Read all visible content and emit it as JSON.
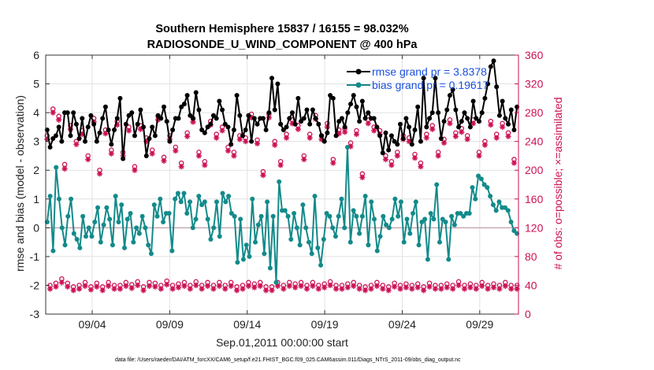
{
  "chart_data": {
    "type": "line",
    "title": "Southern Hemisphere 15837 / 16155 = 98.032%",
    "subtitle": "RADIOSONDE_U_WIND_COMPONENT @ 400 hPa",
    "xlabel": "Sep.01,2011 00:00:00 start",
    "ylabel": "rmse and bias (model - observation)",
    "ylabel_right": "# of obs: o=possible; ×=assimilated",
    "xlim": [
      0,
      30.5
    ],
    "ylim": [
      -3,
      6
    ],
    "ylim_right": [
      0,
      360
    ],
    "x_ticks": [
      3,
      8,
      13,
      18,
      23,
      28
    ],
    "x_tick_labels": [
      "09/04",
      "09/09",
      "09/14",
      "09/19",
      "09/24",
      "09/29"
    ],
    "y_ticks": [
      -3,
      -2,
      -1,
      0,
      1,
      2,
      3,
      4,
      5,
      6
    ],
    "y_tick_labels": [
      "-3",
      "-2",
      "-1",
      "0",
      "1",
      "2",
      "3",
      "4",
      "5",
      "6"
    ],
    "y_ticks_right": [
      0,
      40,
      80,
      120,
      160,
      200,
      240,
      280,
      320,
      360
    ],
    "y_tick_labels_right": [
      "0",
      "40",
      "80",
      "120",
      "160",
      "200",
      "240",
      "280",
      "320",
      "360"
    ],
    "zero_line": 0,
    "grid": true,
    "legend_position": "top-right",
    "series": [
      {
        "name": "rmse grand pr = 3.8378",
        "color": "#000000",
        "values": [
          3.4,
          2.8,
          3.1,
          3.2,
          3.5,
          3.0,
          4.0,
          4.0,
          3.2,
          4.0,
          3.6,
          3.1,
          3.8,
          3.0,
          3.5,
          3.9,
          3.6,
          3.0,
          3.3,
          3.8,
          4.2,
          3.4,
          2.9,
          3.4,
          3.8,
          4.5,
          2.4,
          3.6,
          3.9,
          4.0,
          3.2,
          3.6,
          4.1,
          3.5,
          2.5,
          3.1,
          3.5,
          3.2,
          3.9,
          3.8,
          4.2,
          3.7,
          3.0,
          3.4,
          3.8,
          3.8,
          4.2,
          4.3,
          4.6,
          3.9,
          3.8,
          4.7,
          4.1,
          3.4,
          3.3,
          3.5,
          3.6,
          3.9,
          3.8,
          4.4,
          4.1,
          3.6,
          3.5,
          2.9,
          3.4,
          4.6,
          3.9,
          3.2,
          3.4,
          3.9,
          3.0,
          3.8,
          3.6,
          3.8,
          3.8,
          3.4,
          4.0,
          5.2,
          4.1,
          5.0,
          3.6,
          3.4,
          3.5,
          3.8,
          4.0,
          3.6,
          4.5,
          3.7,
          3.8,
          4.1,
          3.6,
          4.1,
          3.8,
          3.6,
          3.2,
          3.0,
          3.3,
          4.6,
          4.5,
          3.2,
          3.7,
          3.8,
          3.5,
          4.0,
          4.3,
          4.6,
          4.2,
          3.7,
          4.4,
          3.8,
          4.0,
          3.8,
          3.8,
          3.5,
          3.2,
          2.6,
          3.3,
          2.7,
          3.2,
          3.0,
          2.9,
          3.6,
          3.1,
          3.8,
          3.5,
          2.9,
          3.4,
          4.2,
          3.0,
          5.2,
          3.5,
          3.8,
          4.0,
          5.2,
          4.0,
          3.1,
          3.7,
          4.1,
          4.6,
          4.8,
          4.1,
          3.5,
          3.7,
          4.0,
          3.8,
          3.5,
          4.4,
          3.8,
          3.7,
          4.0,
          4.5,
          5.0,
          5.6,
          5.8,
          4.9,
          3.9,
          4.4,
          3.8,
          3.6,
          4.1,
          3.4,
          4.2
        ]
      },
      {
        "name": "bias grand pr = 0.19617",
        "color": "#138a8a",
        "values": [
          0.2,
          1.1,
          -0.8,
          2.1,
          1.0,
          0.0,
          -0.6,
          0.4,
          1.0,
          -0.2,
          -0.4,
          -0.7,
          0.4,
          -0.3,
          0.0,
          -0.3,
          0.2,
          0.7,
          -0.5,
          0.1,
          0.7,
          0.3,
          -0.6,
          1.1,
          0.2,
          0.8,
          -0.7,
          0.3,
          0.5,
          -0.5,
          0.0,
          -0.2,
          0.4,
          0.0,
          -0.6,
          -0.9,
          0.8,
          0.4,
          1.0,
          0.2,
          0.5,
          0.5,
          -0.8,
          1.0,
          1.2,
          0.9,
          1.2,
          0.5,
          0.9,
          0.0,
          0.3,
          1.1,
          0.8,
          0.9,
          0.3,
          -0.4,
          0.0,
          0.9,
          -0.3,
          1.2,
          0.9,
          1.1,
          0.5,
          0.4,
          -1.2,
          0.3,
          -1.1,
          -0.6,
          -1.0,
          1.0,
          -0.5,
          0.1,
          0.4,
          -0.9,
          0.9,
          -1.4,
          0.4,
          -1.9,
          1.6,
          0.6,
          0.6,
          0.4,
          -0.4,
          0.5,
          0.0,
          -0.6,
          0.8,
          0.0,
          -0.5,
          -0.9,
          1.1,
          -0.7,
          -1.3,
          -0.4,
          0.5,
          0.4,
          0.0,
          -0.3,
          0.4,
          1.0,
          0.0,
          2.8,
          -0.5,
          0.6,
          0.4,
          -0.2,
          0.4,
          1.1,
          -0.6,
          0.9,
          0.3,
          -0.8,
          -0.3,
          0.4,
          0.1,
          0.0,
          0.3,
          1.0,
          0.4,
          0.9,
          -0.5,
          0.3,
          -0.2,
          0.5,
          0.9,
          -0.6,
          0.2,
          0.3,
          -1.1,
          0.5,
          0.3,
          1.5,
          -0.5,
          0.3,
          0.2,
          -1.1,
          0.4,
          0.1,
          0.5,
          0.5,
          0.4,
          0.5,
          0.5,
          1.4,
          1.0,
          1.8,
          1.7,
          1.5,
          1.4,
          1.1,
          0.8,
          0.6,
          0.9,
          0.7,
          0.7,
          0.6,
          0.2,
          -0.1,
          -0.2
        ]
      },
      {
        "name": "obs possible",
        "color": "#cc1155",
        "values": [
          248,
          40,
          285,
          43,
          275,
          49,
          208,
          43,
          262,
          38,
          240,
          40,
          255,
          44,
          220,
          38,
          272,
          43,
          200,
          38,
          256,
          44,
          228,
          40,
          268,
          40,
          225,
          44,
          260,
          41,
          205,
          45,
          262,
          38,
          245,
          44,
          228,
          43,
          275,
          40,
          218,
          46,
          248,
          40,
          232,
          42,
          210,
          44,
          252,
          40,
          272,
          45,
          225,
          40,
          212,
          44,
          268,
          40,
          250,
          44,
          260,
          40,
          232,
          44,
          225,
          38,
          248,
          40,
          245,
          44,
          278,
          42,
          242,
          44,
          198,
          38,
          278,
          38,
          240,
          44,
          212,
          40,
          250,
          44,
          270,
          42,
          262,
          44,
          220,
          40,
          250,
          44,
          276,
          40,
          248,
          42,
          265,
          45,
          215,
          40,
          256,
          40,
          258,
          42,
          238,
          44,
          255,
          40,
          195,
          38,
          270,
          40,
          260,
          44,
          255,
          40,
          220,
          38,
          212,
          43,
          225,
          40,
          248,
          42,
          245,
          40,
          222,
          42,
          210,
          38,
          250,
          43,
          262,
          40,
          225,
          40,
          243,
          42,
          270,
          40,
          252,
          45,
          258,
          40,
          248,
          42,
          270,
          40,
          225,
          44,
          240,
          40,
          268,
          42,
          250,
          40,
          265,
          44,
          252,
          40,
          215,
          40
        ]
      },
      {
        "name": "obs assimilated",
        "color": "#cc1155",
        "values": [
          243,
          35,
          280,
          38,
          270,
          44,
          202,
          38,
          257,
          33,
          236,
          35,
          250,
          39,
          215,
          34,
          267,
          38,
          195,
          33,
          251,
          39,
          223,
          35,
          263,
          35,
          220,
          39,
          255,
          36,
          200,
          40,
          257,
          33,
          240,
          39,
          223,
          38,
          270,
          35,
          213,
          41,
          243,
          35,
          227,
          37,
          205,
          39,
          247,
          35,
          267,
          40,
          220,
          35,
          207,
          39,
          263,
          35,
          245,
          39,
          255,
          35,
          227,
          39,
          220,
          33,
          243,
          35,
          240,
          39,
          273,
          37,
          237,
          39,
          193,
          33,
          273,
          33,
          235,
          39,
          207,
          35,
          245,
          39,
          265,
          37,
          257,
          39,
          215,
          35,
          245,
          39,
          271,
          35,
          243,
          37,
          260,
          40,
          210,
          35,
          251,
          35,
          253,
          37,
          233,
          39,
          250,
          35,
          190,
          33,
          265,
          35,
          255,
          39,
          250,
          35,
          215,
          33,
          207,
          38,
          220,
          35,
          243,
          37,
          240,
          35,
          217,
          37,
          205,
          33,
          245,
          38,
          257,
          35,
          220,
          35,
          238,
          37,
          265,
          35,
          247,
          40,
          253,
          35,
          243,
          37,
          265,
          35,
          220,
          39,
          235,
          35,
          263,
          37,
          245,
          35,
          260,
          39,
          247,
          35,
          210,
          35
        ]
      }
    ]
  },
  "footer": {
    "data_file": "data file: /Users/raeder/DAI/ATM_forcXX/CAM6_setup/f.e21.FHIST_BGC.f09_025.CAM6assim.011/Diags_NTrS_2011-09/obs_diag_output.nc"
  }
}
